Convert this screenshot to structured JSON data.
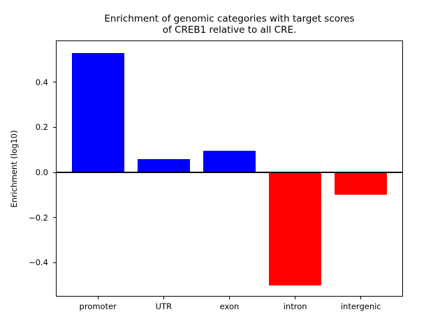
{
  "chart_data": {
    "type": "bar",
    "title": "Enrichment of genomic categories with target scores\nof CREB1 relative to all CRE.",
    "xlabel": "",
    "ylabel": "Enrichment (log10)",
    "categories": [
      "promoter",
      "UTR",
      "exon",
      "intron",
      "intergenic"
    ],
    "values": [
      0.53,
      0.06,
      0.095,
      -0.5,
      -0.1
    ],
    "bar_colors": [
      "#0000ff",
      "#0000ff",
      "#0000ff",
      "#ff0000",
      "#ff0000"
    ],
    "positive_color": "#0000ff",
    "negative_color": "#ff0000",
    "ylim": [
      -0.55,
      0.585
    ],
    "xlim": [
      -0.64,
      4.64
    ],
    "bar_width": 0.8,
    "yticks": [
      0.4,
      0.2,
      0.0,
      -0.2,
      -0.4
    ],
    "ytick_labels": [
      "0.4",
      "0.2",
      "0.0",
      "−0.2",
      "−0.4"
    ],
    "grid": false,
    "legend": null,
    "zero_line": {
      "value": 0.0,
      "color": "#000000",
      "thickness": 2
    },
    "axis_color": "#000000",
    "text_color": "#000000",
    "background_color": "#ffffff"
  }
}
